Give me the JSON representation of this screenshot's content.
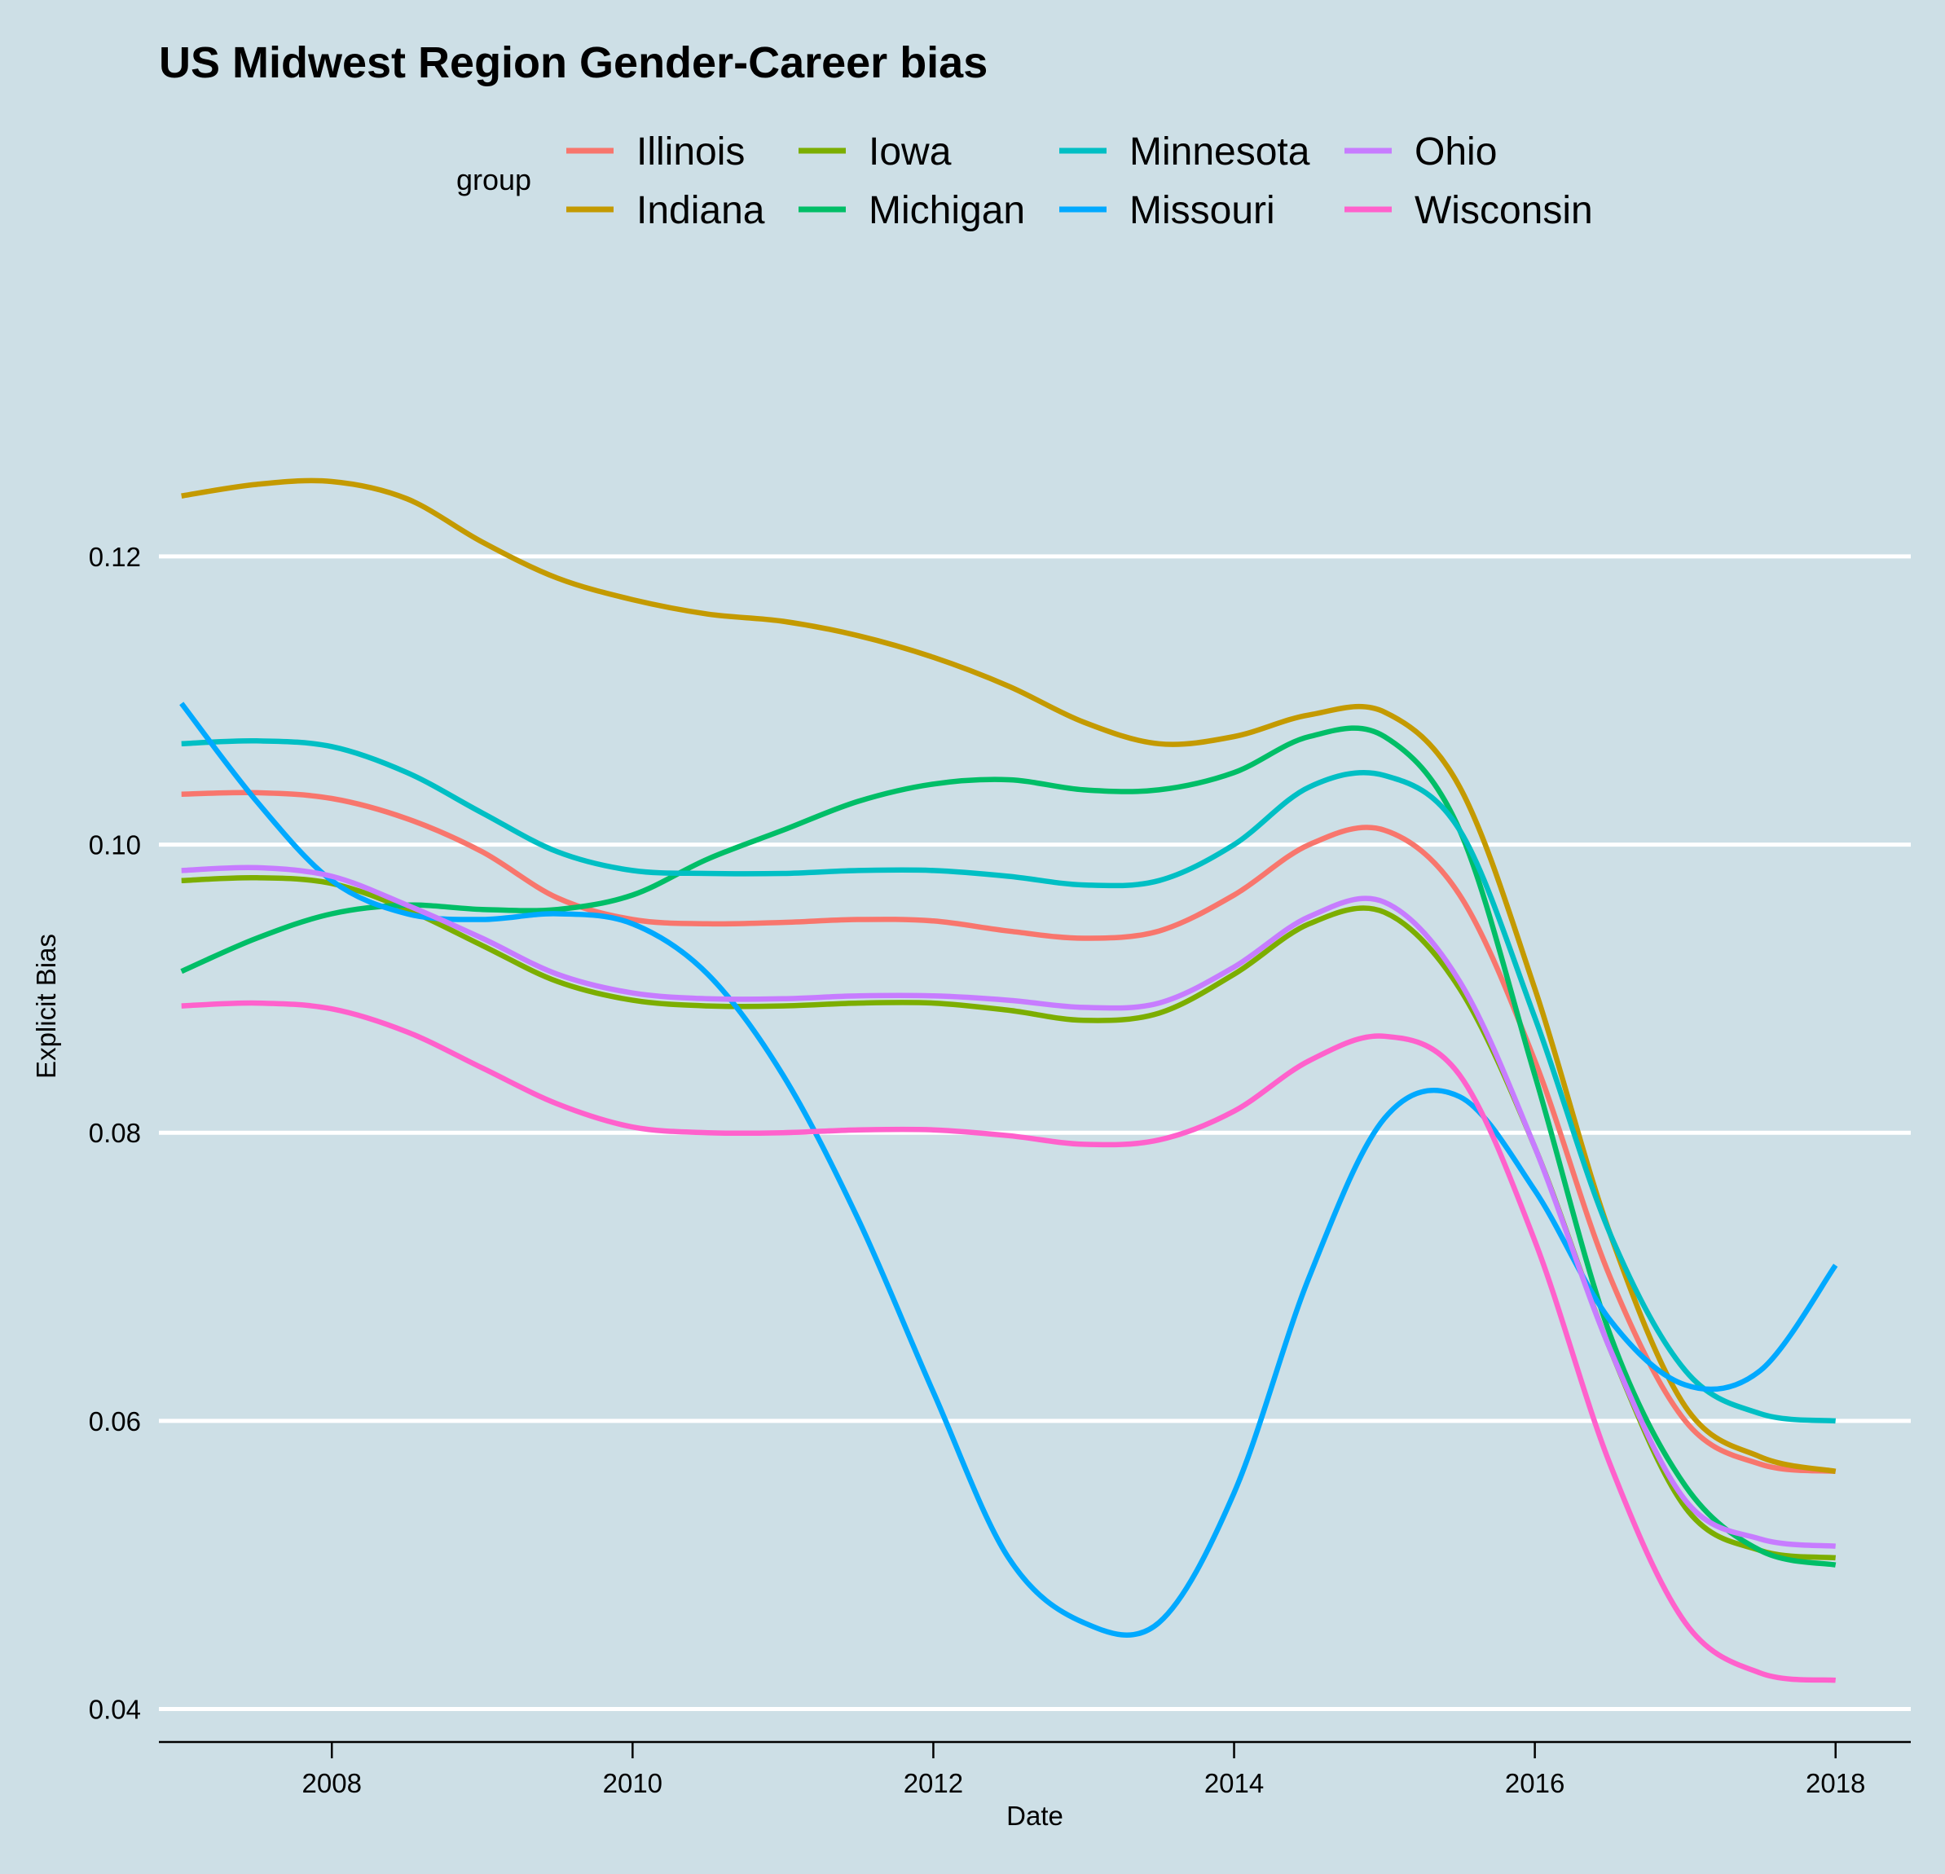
{
  "chart_data": {
    "type": "line",
    "title": "US Midwest Region Gender-Career bias",
    "xlabel": "Date",
    "ylabel": "Explicit Bias",
    "xlim": [
      2006.85,
      2018.5
    ],
    "ylim": [
      0.0376,
      0.136
    ],
    "x_ticks": [
      2008,
      2010,
      2012,
      2014,
      2016,
      2018
    ],
    "x_tick_labels": [
      "2008",
      "2010",
      "2012",
      "2014",
      "2016",
      "2018"
    ],
    "y_ticks": [
      0.04,
      0.06,
      0.08,
      0.1,
      0.12
    ],
    "y_tick_labels": [
      "0.04",
      "0.06",
      "0.08",
      "0.10",
      "0.12"
    ],
    "grid": "horizontal major only",
    "legend": {
      "title": "group",
      "position": "top"
    },
    "x": [
      2007.0,
      2007.5,
      2008.0,
      2008.5,
      2009.0,
      2009.5,
      2010.0,
      2010.5,
      2011.0,
      2011.5,
      2012.0,
      2012.5,
      2013.0,
      2013.5,
      2014.0,
      2014.5,
      2015.0,
      2015.5,
      2016.0,
      2016.5,
      2017.0,
      2017.5,
      2018.0
    ],
    "series": [
      {
        "name": "Illinois",
        "color": "#F8766D",
        "values": [
          0.1035,
          0.1036,
          0.1032,
          0.1018,
          0.0995,
          0.0963,
          0.0948,
          0.0945,
          0.0946,
          0.0948,
          0.0947,
          0.094,
          0.0935,
          0.094,
          0.0965,
          0.1,
          0.101,
          0.0965,
          0.085,
          0.07,
          0.06,
          0.057,
          0.0565
        ]
      },
      {
        "name": "Indiana",
        "color": "#C49A00",
        "values": [
          0.1242,
          0.125,
          0.1252,
          0.124,
          0.121,
          0.1185,
          0.117,
          0.116,
          0.1155,
          0.1145,
          0.113,
          0.111,
          0.1085,
          0.107,
          0.1075,
          0.109,
          0.1092,
          0.104,
          0.09,
          0.073,
          0.061,
          0.0575,
          0.0565
        ]
      },
      {
        "name": "Iowa",
        "color": "#7CAE00",
        "values": [
          0.0975,
          0.0977,
          0.0973,
          0.0955,
          0.093,
          0.0905,
          0.0892,
          0.0888,
          0.0888,
          0.089,
          0.089,
          0.0885,
          0.0878,
          0.0883,
          0.091,
          0.0945,
          0.0953,
          0.09,
          0.079,
          0.065,
          0.054,
          0.051,
          0.0505
        ]
      },
      {
        "name": "Michigan",
        "color": "#00BE67",
        "values": [
          0.0912,
          0.0935,
          0.0952,
          0.0958,
          0.0955,
          0.0955,
          0.0965,
          0.099,
          0.101,
          0.103,
          0.1042,
          0.1045,
          0.1038,
          0.1038,
          0.105,
          0.1075,
          0.1075,
          0.101,
          0.084,
          0.066,
          0.0555,
          0.051,
          0.05
        ]
      },
      {
        "name": "Minnesota",
        "color": "#00BFC4",
        "values": [
          0.107,
          0.1072,
          0.1068,
          0.105,
          0.1022,
          0.0995,
          0.0982,
          0.098,
          0.098,
          0.0982,
          0.0982,
          0.0978,
          0.0972,
          0.0975,
          0.1,
          0.104,
          0.1048,
          0.101,
          0.088,
          0.073,
          0.0635,
          0.0605,
          0.06
        ]
      },
      {
        "name": "Missouri",
        "color": "#00A9FF",
        "values": [
          0.1098,
          0.103,
          0.0975,
          0.0952,
          0.0948,
          0.0952,
          0.0945,
          0.091,
          0.084,
          0.074,
          0.062,
          0.0505,
          0.046,
          0.046,
          0.055,
          0.07,
          0.081,
          0.0825,
          0.076,
          0.067,
          0.0625,
          0.0635,
          0.0708
        ]
      },
      {
        "name": "Ohio",
        "color": "#C77CFF",
        "values": [
          0.0982,
          0.0984,
          0.0978,
          0.0958,
          0.0935,
          0.091,
          0.0897,
          0.0893,
          0.0893,
          0.0895,
          0.0895,
          0.0892,
          0.0887,
          0.089,
          0.0915,
          0.095,
          0.096,
          0.0905,
          0.079,
          0.065,
          0.0545,
          0.0518,
          0.0513
        ]
      },
      {
        "name": "Wisconsin",
        "color": "#FF61CC",
        "values": [
          0.0888,
          0.089,
          0.0886,
          0.087,
          0.0845,
          0.082,
          0.0804,
          0.08,
          0.08,
          0.0802,
          0.0802,
          0.0798,
          0.0792,
          0.0795,
          0.0815,
          0.085,
          0.0867,
          0.084,
          0.0725,
          0.057,
          0.046,
          0.0425,
          0.042
        ]
      }
    ]
  }
}
